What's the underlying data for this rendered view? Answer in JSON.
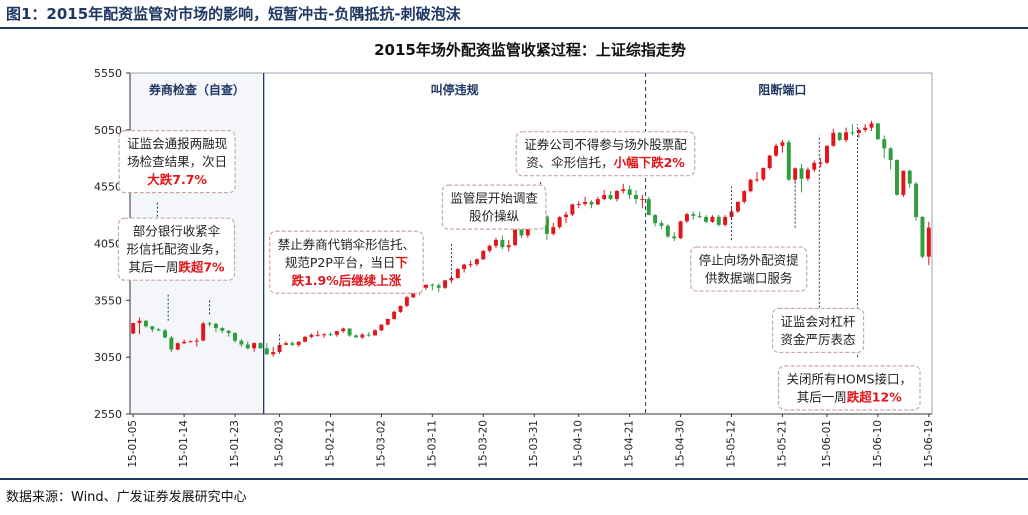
{
  "figure_title": "图1：2015年配资监管对市场的影响，短暂冲击-负隅抵抗-刺破泡沫",
  "source": "数据来源：Wind、广发证券发展研究中心",
  "colors": {
    "up": "#e0161b",
    "down": "#2e9e3f",
    "axis": "#333333",
    "divider": "#1f3864",
    "box_border": "#c9a9a6",
    "highlight": "#e0161b"
  },
  "chart_data": {
    "type": "candlestick",
    "title": "2015年场外配资监管收紧过程：上证综指走势",
    "ylim": [
      2550,
      5550
    ],
    "yticks": [
      2550,
      3050,
      3550,
      4050,
      4550,
      5050,
      5550
    ],
    "xlabels": [
      "15-01-05",
      "15-01-14",
      "15-01-23",
      "15-02-03",
      "15-02-12",
      "15-03-02",
      "15-03-11",
      "15-03-20",
      "15-03-31",
      "15-04-10",
      "15-04-21",
      "15-04-30",
      "15-05-12",
      "15-05-21",
      "15-06-01",
      "15-06-10",
      "15-06-19"
    ],
    "phases": [
      {
        "label": "券商检查（自查）",
        "start": 0,
        "end": 21
      },
      {
        "label": "叫停违规",
        "start": 21,
        "end": 81
      },
      {
        "label": "阻断端口",
        "start": 81,
        "end": 124
      }
    ],
    "candles": [
      [
        3258,
        3351,
        3253,
        3351
      ],
      [
        3351,
        3400,
        3253,
        3371
      ],
      [
        3371,
        3374,
        3308,
        3322
      ],
      [
        3322,
        3323,
        3270,
        3294
      ],
      [
        3294,
        3307,
        3280,
        3285
      ],
      [
        3285,
        3299,
        3220,
        3222
      ],
      [
        3222,
        3235,
        3095,
        3117
      ],
      [
        3117,
        3180,
        3110,
        3173
      ],
      [
        3173,
        3205,
        3165,
        3185
      ],
      [
        3185,
        3196,
        3180,
        3190
      ],
      [
        3190,
        3218,
        3144,
        3196
      ],
      [
        3196,
        3360,
        3190,
        3347
      ],
      [
        3347,
        3362,
        3320,
        3343
      ],
      [
        3343,
        3353,
        3270,
        3306
      ],
      [
        3306,
        3316,
        3262,
        3282
      ],
      [
        3282,
        3290,
        3230,
        3262
      ],
      [
        3262,
        3270,
        3178,
        3195
      ],
      [
        3195,
        3210,
        3140,
        3161
      ],
      [
        3161,
        3190,
        3120,
        3128
      ],
      [
        3128,
        3180,
        3098,
        3174
      ],
      [
        3174,
        3180,
        3125,
        3128
      ],
      [
        3128,
        3175,
        3070,
        3075
      ],
      [
        3075,
        3140,
        3054,
        3095
      ],
      [
        3095,
        3160,
        3080,
        3158
      ],
      [
        3158,
        3190,
        3155,
        3173
      ],
      [
        3173,
        3190,
        3150,
        3158
      ],
      [
        3158,
        3190,
        3140,
        3186
      ],
      [
        3186,
        3235,
        3180,
        3229
      ],
      [
        3229,
        3260,
        3215,
        3246
      ],
      [
        3246,
        3283,
        3230,
        3247
      ],
      [
        3247,
        3260,
        3220,
        3252
      ],
      [
        3252,
        3270,
        3235,
        3247
      ],
      [
        3247,
        3280,
        3230,
        3279
      ],
      [
        3279,
        3310,
        3265,
        3302
      ],
      [
        3302,
        3305,
        3230,
        3241
      ],
      [
        3241,
        3250,
        3220,
        3224
      ],
      [
        3224,
        3262,
        3210,
        3248
      ],
      [
        3248,
        3270,
        3230,
        3241
      ],
      [
        3241,
        3295,
        3240,
        3286
      ],
      [
        3286,
        3340,
        3280,
        3336
      ],
      [
        3336,
        3390,
        3330,
        3386
      ],
      [
        3386,
        3460,
        3380,
        3449
      ],
      [
        3449,
        3502,
        3440,
        3502
      ],
      [
        3502,
        3590,
        3490,
        3577
      ],
      [
        3577,
        3620,
        3570,
        3617
      ],
      [
        3617,
        3680,
        3600,
        3661
      ],
      [
        3661,
        3690,
        3640,
        3687
      ],
      [
        3687,
        3700,
        3640,
        3682
      ],
      [
        3682,
        3700,
        3620,
        3660
      ],
      [
        3660,
        3730,
        3650,
        3726
      ],
      [
        3726,
        3770,
        3700,
        3747
      ],
      [
        3747,
        3835,
        3740,
        3825
      ],
      [
        3825,
        3870,
        3795,
        3864
      ],
      [
        3864,
        3900,
        3840,
        3868
      ],
      [
        3868,
        3920,
        3850,
        3911
      ],
      [
        3911,
        3990,
        3905,
        3986
      ],
      [
        3986,
        4040,
        3970,
        4030
      ],
      [
        4030,
        4100,
        4010,
        4082
      ],
      [
        4082,
        4120,
        4000,
        4018
      ],
      [
        4018,
        4080,
        3980,
        4035
      ],
      [
        4035,
        4175,
        4030,
        4172
      ],
      [
        4172,
        4240,
        4100,
        4121
      ],
      [
        4121,
        4200,
        4100,
        4195
      ],
      [
        4195,
        4300,
        4190,
        4293
      ],
      [
        4293,
        4320,
        4240,
        4287
      ],
      [
        4287,
        4300,
        4080,
        4135
      ],
      [
        4135,
        4230,
        4120,
        4194
      ],
      [
        4194,
        4290,
        4180,
        4282
      ],
      [
        4282,
        4330,
        4230,
        4305
      ],
      [
        4305,
        4400,
        4290,
        4394
      ],
      [
        4394,
        4420,
        4360,
        4398
      ],
      [
        4398,
        4460,
        4380,
        4415
      ],
      [
        4415,
        4430,
        4360,
        4393
      ],
      [
        4393,
        4460,
        4390,
        4441
      ],
      [
        4441,
        4520,
        4430,
        4476
      ],
      [
        4476,
        4510,
        4430,
        4442
      ],
      [
        4442,
        4520,
        4420,
        4512
      ],
      [
        4512,
        4575,
        4490,
        4527
      ],
      [
        4527,
        4560,
        4440,
        4477
      ],
      [
        4477,
        4520,
        4400,
        4441
      ],
      [
        4441,
        4480,
        4360,
        4441
      ],
      [
        4441,
        4460,
        4300,
        4300
      ],
      [
        4300,
        4310,
        4200,
        4229
      ],
      [
        4229,
        4250,
        4180,
        4206
      ],
      [
        4206,
        4220,
        4100,
        4112
      ],
      [
        4112,
        4150,
        4070,
        4096
      ],
      [
        4096,
        4250,
        4090,
        4245
      ],
      [
        4245,
        4320,
        4230,
        4308
      ],
      [
        4308,
        4330,
        4260,
        4293
      ],
      [
        4293,
        4330,
        4270,
        4284
      ],
      [
        4284,
        4300,
        4230,
        4241
      ],
      [
        4241,
        4300,
        4230,
        4285
      ],
      [
        4285,
        4300,
        4200,
        4214
      ],
      [
        4214,
        4300,
        4200,
        4283
      ],
      [
        4283,
        4360,
        4270,
        4332
      ],
      [
        4332,
        4420,
        4320,
        4417
      ],
      [
        4417,
        4520,
        4400,
        4510
      ],
      [
        4510,
        4620,
        4500,
        4611
      ],
      [
        4611,
        4680,
        4590,
        4614
      ],
      [
        4614,
        4720,
        4600,
        4714
      ],
      [
        4714,
        4830,
        4700,
        4823
      ],
      [
        4823,
        4930,
        4810,
        4910
      ],
      [
        4910,
        4960,
        4850,
        4941
      ],
      [
        4941,
        4960,
        4600,
        4612
      ],
      [
        4612,
        4720,
        4580,
        4711
      ],
      [
        4711,
        4750,
        4500,
        4620
      ],
      [
        4620,
        4720,
        4600,
        4700
      ],
      [
        4700,
        4780,
        4680,
        4760
      ],
      [
        4760,
        4800,
        4720,
        4760
      ],
      [
        4760,
        4910,
        4750,
        4910
      ],
      [
        4910,
        5060,
        4900,
        5024
      ],
      [
        5024,
        5030,
        4950,
        4961
      ],
      [
        4961,
        5070,
        4940,
        5028
      ],
      [
        5028,
        5100,
        5000,
        5023
      ],
      [
        5023,
        5060,
        4980,
        5049
      ],
      [
        5049,
        5100,
        5030,
        5069
      ],
      [
        5069,
        5130,
        5040,
        5106
      ],
      [
        5106,
        5110,
        4960,
        4967
      ],
      [
        4967,
        5000,
        4800,
        4887
      ],
      [
        4887,
        4900,
        4700,
        4785
      ],
      [
        4785,
        4790,
        4470,
        4478
      ],
      [
        4478,
        4690,
        4460,
        4690
      ],
      [
        4690,
        4700,
        4540,
        4577
      ],
      [
        4577,
        4590,
        4250,
        4283
      ],
      [
        4283,
        4290,
        3920,
        3934
      ],
      [
        3934,
        4240,
        3860,
        4190
      ]
    ],
    "annotations": [
      {
        "lines": [
          [
            [
              "证监会通报两融现",
              false
            ]
          ],
          [
            [
              "场检查结果，次日",
              false
            ]
          ],
          [
            [
              "大跌7.7%",
              true
            ]
          ]
        ],
        "x": 6.9,
        "y": 4770
      },
      {
        "lines": [
          [
            [
              "部分银行收紧伞",
              false
            ]
          ],
          [
            [
              "形信托配资业务，",
              false
            ]
          ],
          [
            [
              "其后一周",
              false
            ],
            [
              "跌超7%",
              true
            ]
          ]
        ],
        "x": 6.8,
        "y": 4000
      },
      {
        "lines": [
          [
            [
              "禁止券商代销伞形信托、",
              false
            ]
          ],
          [
            [
              "规范P2P平台，当日",
              false
            ],
            [
              "下",
              true
            ]
          ],
          [
            [
              "跌1.9%后继续上涨",
              true
            ]
          ]
        ],
        "x": 33.5,
        "y": 3885
      },
      {
        "lines": [
          [
            [
              "监管层开始调查",
              false
            ]
          ],
          [
            [
              "股价操纵",
              false
            ]
          ]
        ],
        "x": 56.7,
        "y": 4370
      },
      {
        "lines": [
          [
            [
              "证券公司不得参与场外股票配",
              false
            ]
          ],
          [
            [
              "资、伞形信托，",
              false
            ],
            [
              "小幅下跌2%",
              true
            ]
          ]
        ],
        "x": 74.2,
        "y": 4840
      },
      {
        "lines": [
          [
            [
              "停止向场外配资提",
              false
            ]
          ],
          [
            [
              "供数据端口服务",
              false
            ]
          ]
        ],
        "x": 96.7,
        "y": 3825
      },
      {
        "lines": [
          [
            [
              "证监会对杠杆",
              false
            ]
          ],
          [
            [
              "资金严厉表态",
              false
            ]
          ]
        ],
        "x": 107.6,
        "y": 3285
      },
      {
        "lines": [
          [
            [
              "关闭所有HOMS接口，",
              false
            ]
          ],
          [
            [
              "其后一周",
              false
            ],
            [
              "跌超12%",
              true
            ]
          ]
        ],
        "x": 112.5,
        "y": 2780
      }
    ],
    "markers": [
      {
        "x": 3.8,
        "y1": 4410,
        "y2": 4265
      },
      {
        "x": 5.5,
        "y1": 3600,
        "y2": 3370
      },
      {
        "x": 12.0,
        "y1": 3550,
        "y2": 3410
      },
      {
        "x": 23.0,
        "y1": 3250,
        "y2": 3105
      },
      {
        "x": 50.0,
        "y1": 4045,
        "y2": 3725
      },
      {
        "x": 64.0,
        "y1": 4590,
        "y2": 4250
      },
      {
        "x": 94.0,
        "y1": 4080,
        "y2": 4550
      },
      {
        "x": 104.0,
        "y1": 4190,
        "y2": 4620
      },
      {
        "x": 107.8,
        "y1": 3450,
        "y2": 5000
      },
      {
        "x": 113.8,
        "y1": 3050,
        "y2": 5100
      }
    ]
  }
}
